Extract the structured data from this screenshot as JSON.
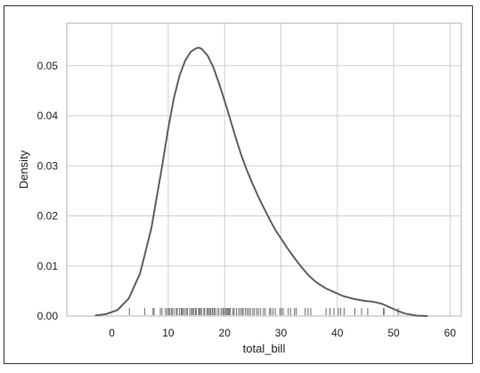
{
  "chart_data": {
    "type": "line",
    "subtype": "kde-with-rug",
    "title": "",
    "xlabel": "total_bill",
    "ylabel": "Density",
    "xlim": [
      -8,
      62
    ],
    "ylim": [
      0,
      0.0585
    ],
    "xticks": [
      0,
      10,
      20,
      30,
      40,
      50,
      60
    ],
    "yticks": [
      0.0,
      0.01,
      0.02,
      0.03,
      0.04,
      0.05
    ],
    "ytick_labels": [
      "0.00",
      "0.01",
      "0.02",
      "0.03",
      "0.04",
      "0.05"
    ],
    "grid": true,
    "legend": "none",
    "colors": {
      "line": "#5f5f5f",
      "grid": "#cfcfcf",
      "axes": "#bdbdbd",
      "rug": "#6a6a6a"
    },
    "series": [
      {
        "x": [
          -3,
          -1,
          1,
          3,
          5,
          7,
          9,
          10,
          11,
          12,
          13,
          14,
          15,
          15.5,
          16,
          17,
          18,
          19,
          20,
          21,
          22,
          23,
          24,
          25,
          26,
          27,
          28,
          29,
          30,
          31,
          32,
          33,
          34,
          35,
          36,
          37,
          38,
          39,
          40,
          41,
          42,
          43,
          44,
          45,
          46,
          47,
          48,
          49,
          50,
          51,
          52,
          53,
          54,
          55,
          56
        ],
        "y": [
          0.0001,
          0.0004,
          0.0012,
          0.0035,
          0.0085,
          0.0175,
          0.0305,
          0.0375,
          0.0435,
          0.048,
          0.051,
          0.0528,
          0.0535,
          0.0536,
          0.0533,
          0.052,
          0.0497,
          0.0465,
          0.043,
          0.0393,
          0.0355,
          0.032,
          0.029,
          0.0263,
          0.0238,
          0.0215,
          0.0193,
          0.0172,
          0.0155,
          0.0138,
          0.0122,
          0.0107,
          0.0093,
          0.008,
          0.007,
          0.0062,
          0.0055,
          0.005,
          0.0045,
          0.004,
          0.0037,
          0.0034,
          0.0032,
          0.003,
          0.0029,
          0.0027,
          0.0024,
          0.0019,
          0.0014,
          0.0009,
          0.0005,
          0.0003,
          0.0001,
          5e-05,
          0.0
        ]
      }
    ],
    "rug": [
      3.1,
      5.8,
      7.3,
      7.5,
      8.6,
      8.9,
      9.5,
      9.8,
      10.1,
      10.3,
      10.6,
      10.7,
      11.0,
      11.4,
      11.6,
      12.0,
      12.3,
      12.5,
      12.7,
      13.0,
      13.3,
      13.4,
      13.8,
      14.1,
      14.3,
      14.5,
      14.8,
      15.0,
      15.4,
      15.5,
      15.7,
      15.9,
      16.3,
      16.5,
      16.9,
      17.1,
      17.3,
      17.5,
      17.8,
      17.9,
      18.2,
      18.3,
      18.7,
      19.0,
      19.4,
      19.7,
      19.8,
      20.1,
      20.3,
      20.5,
      20.7,
      20.9,
      21.0,
      21.5,
      21.7,
      22.1,
      22.5,
      22.8,
      23.1,
      23.3,
      23.7,
      24.0,
      24.3,
      24.6,
      25.0,
      25.3,
      25.7,
      26.0,
      26.4,
      26.9,
      27.2,
      28.0,
      28.2,
      28.6,
      29.0,
      29.8,
      30.1,
      30.4,
      31.3,
      31.7,
      32.4,
      32.7,
      34.3,
      34.8,
      35.3,
      38.0,
      38.7,
      39.4,
      40.2,
      40.6,
      41.2,
      43.1,
      44.3,
      45.4,
      48.2,
      48.3,
      50.8
    ]
  }
}
